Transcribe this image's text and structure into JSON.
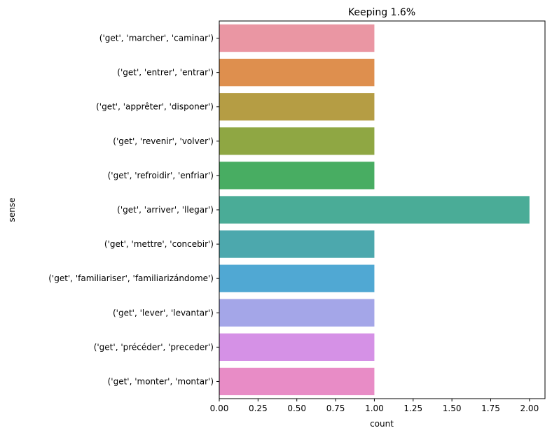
{
  "chart_data": {
    "type": "bar",
    "orientation": "horizontal",
    "title": "Keeping 1.6%",
    "xlabel": "count",
    "ylabel": "sense",
    "xlim": [
      0,
      2.1
    ],
    "xticks": [
      "0.00",
      "0.25",
      "0.50",
      "0.75",
      "1.00",
      "1.25",
      "1.50",
      "1.75",
      "2.00"
    ],
    "grid": false,
    "legend": "none",
    "categories": [
      "('get', 'marcher', 'caminar')",
      "('get', 'entrer', 'entrar')",
      "('get', 'apprêter', 'disponer')",
      "('get', 'revenir', 'volver')",
      "('get', 'refroidir', 'enfriar')",
      "('get', 'arriver', 'llegar')",
      "('get', 'mettre', 'concebir')",
      "('get', 'familiariser', 'familiarizándome')",
      "('get', 'lever', 'levantar')",
      "('get', 'précéder', 'preceder')",
      "('get', 'monter', 'montar')"
    ],
    "values": [
      1,
      1,
      1,
      1,
      1,
      2,
      1,
      1,
      1,
      1,
      1
    ],
    "colors": [
      "#ea96a3",
      "#de8f4e",
      "#b59d44",
      "#8fa743",
      "#48ad62",
      "#4aac97",
      "#4ca8ad",
      "#50a8d3",
      "#a4a6e8",
      "#d591e6",
      "#e88cc6"
    ]
  }
}
